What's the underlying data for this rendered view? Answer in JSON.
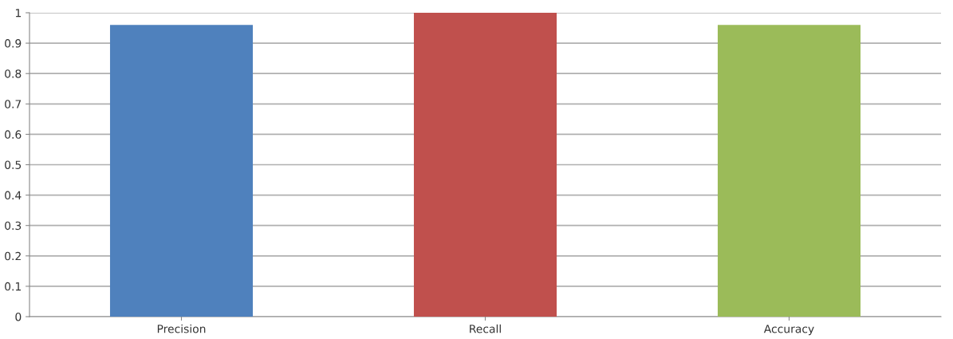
{
  "chart_data": {
    "type": "bar",
    "categories": [
      "Precision",
      "Recall",
      "Accuracy"
    ],
    "values": [
      0.96,
      1.0,
      0.96
    ],
    "colors": [
      "#4f81bd",
      "#c0504d",
      "#9bbb59"
    ],
    "ylim": [
      0,
      1
    ],
    "yticks": [
      0,
      0.1,
      0.2,
      0.3,
      0.4,
      0.5,
      0.6,
      0.7,
      0.8,
      0.9,
      1
    ],
    "grid": "y",
    "legend": false
  }
}
